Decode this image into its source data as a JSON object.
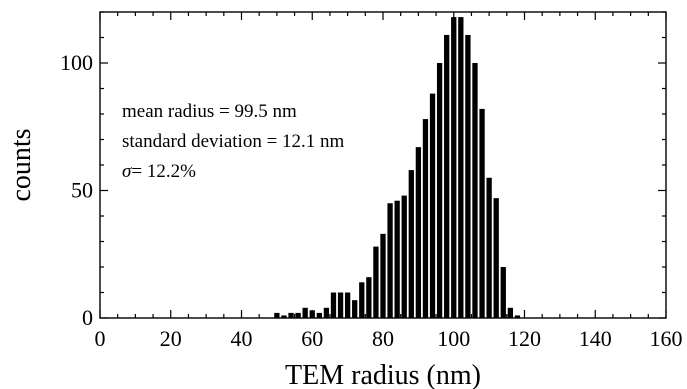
{
  "chart_data": {
    "type": "bar",
    "xlabel": "TEM radius (nm)",
    "ylabel": "counts",
    "xlim": [
      0,
      160
    ],
    "ylim": [
      0,
      120
    ],
    "x_ticks": [
      "0",
      "20",
      "40",
      "60",
      "80",
      "100",
      "120",
      "140",
      "160"
    ],
    "y_ticks": [
      "0",
      "50",
      "100"
    ],
    "grid": false,
    "bar_color": "#000000",
    "annotations": {
      "mean": "mean radius = 99.5 nm",
      "std": "standard deviation = 12.1 nm",
      "sigma_symbol": "σ",
      "sigma_rest": "= 12.2%"
    },
    "x": [
      50,
      52,
      54,
      56,
      58,
      60,
      62,
      64,
      66,
      68,
      70,
      72,
      74,
      76,
      78,
      80,
      82,
      84,
      86,
      88,
      90,
      92,
      94,
      96,
      98,
      100,
      102,
      104,
      106,
      108,
      110,
      112,
      114,
      116,
      118,
      120,
      122,
      124
    ],
    "values": [
      2,
      1,
      2,
      2,
      4,
      3,
      2,
      4,
      10,
      10,
      10,
      7,
      14,
      16,
      28,
      33,
      45,
      46,
      48,
      58,
      67,
      78,
      88,
      100,
      111,
      118,
      118,
      111,
      100,
      82,
      55,
      47,
      20,
      4,
      1,
      0,
      0,
      0
    ]
  }
}
